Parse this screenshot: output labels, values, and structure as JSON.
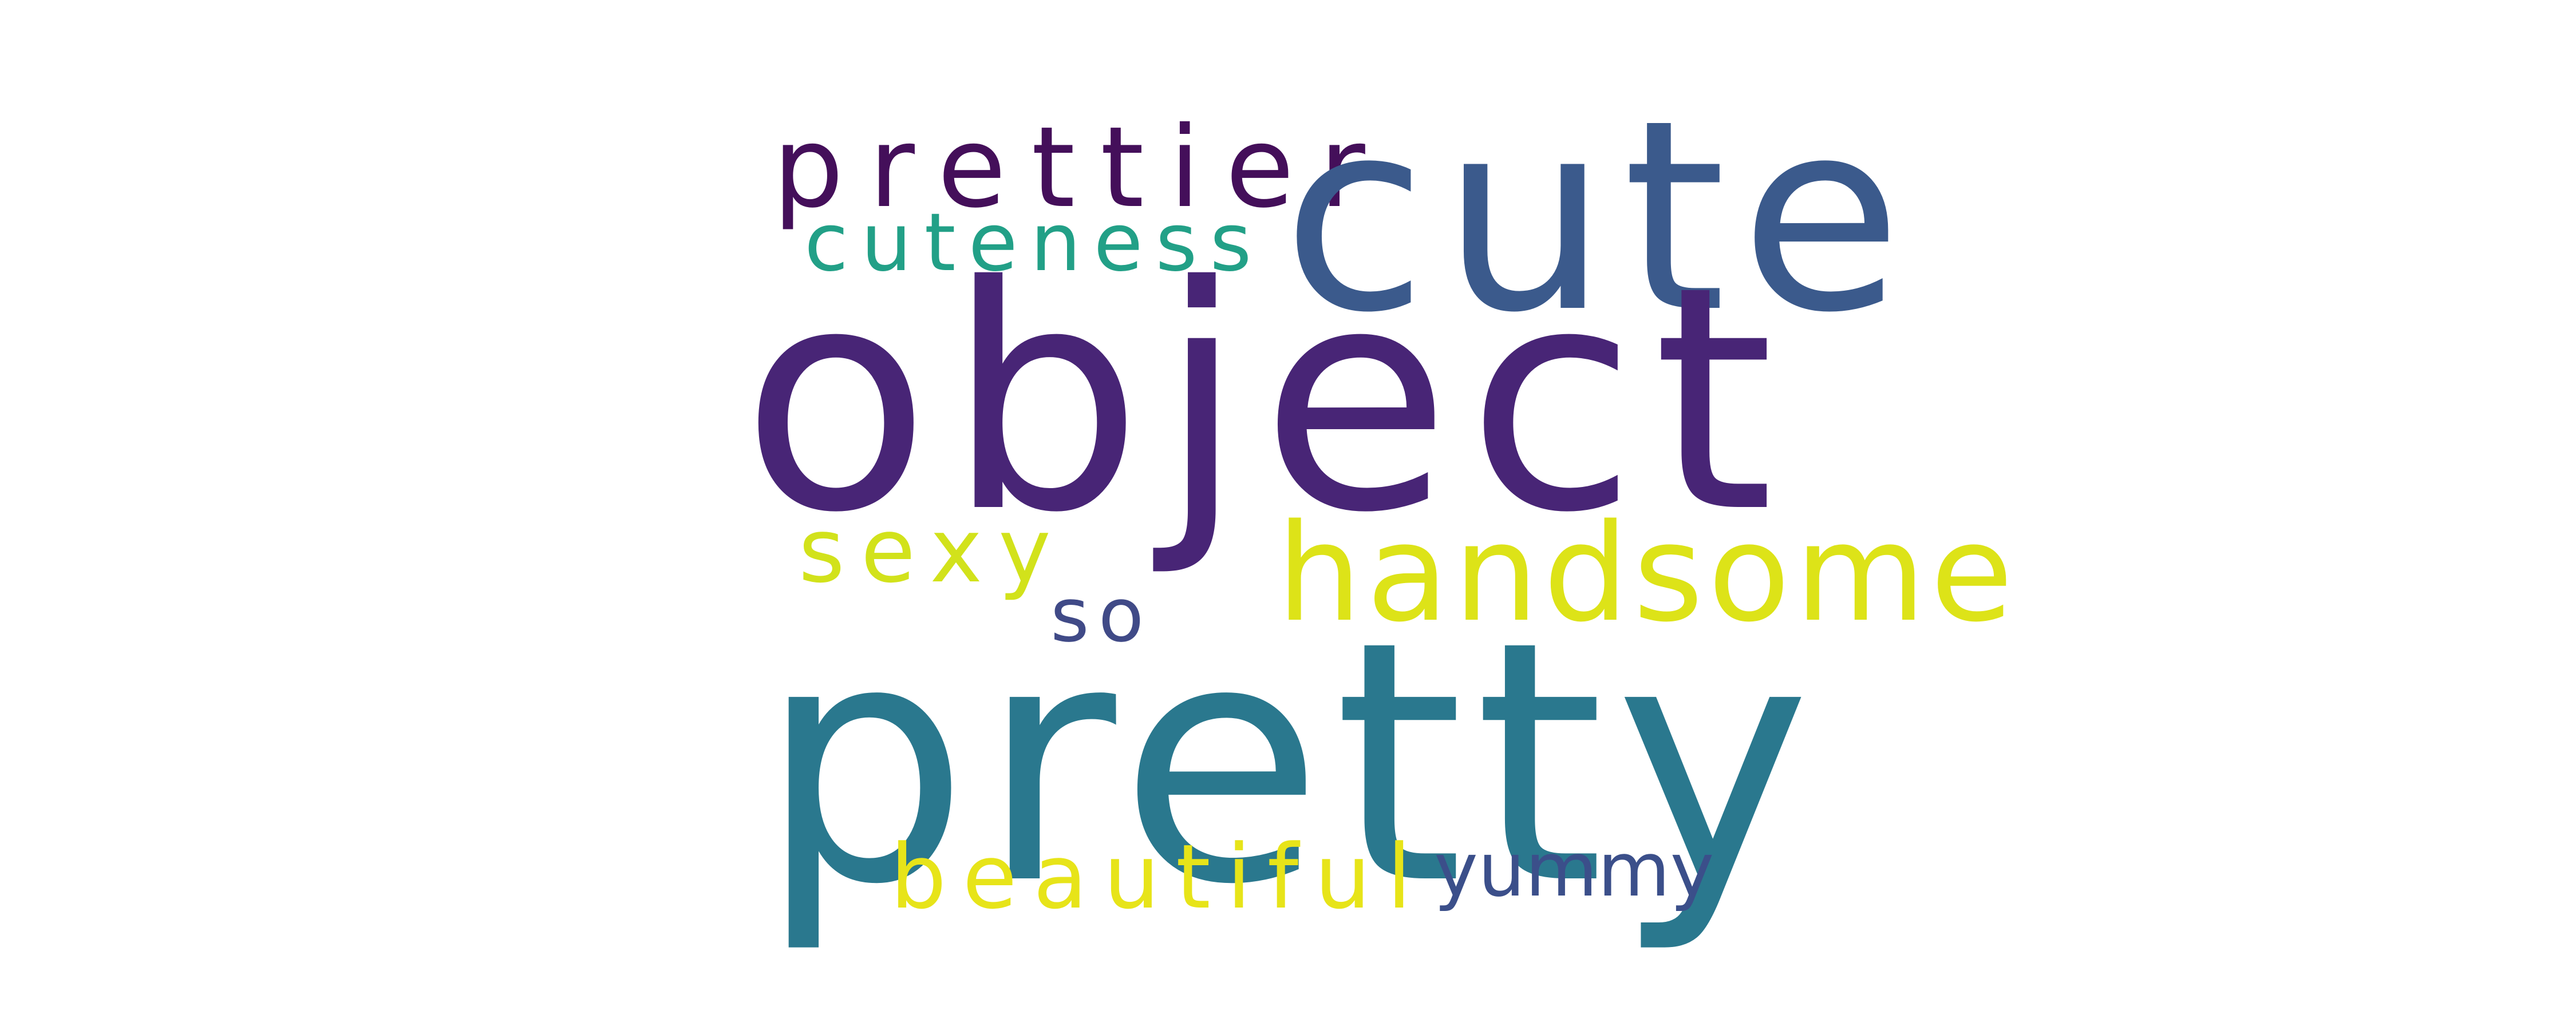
{
  "word_cloud": {
    "words": [
      {
        "text": "object",
        "color": "#482576"
      },
      {
        "text": "pretty",
        "color": "#2a788e"
      },
      {
        "text": "cute",
        "color": "#3b5a8c"
      },
      {
        "text": "handsome",
        "color": "#dde318"
      },
      {
        "text": "prettier",
        "color": "#440f5a"
      },
      {
        "text": "cuteness",
        "color": "#22a087"
      },
      {
        "text": "sexy",
        "color": "#d2e21b"
      },
      {
        "text": "beautiful",
        "color": "#e7e419"
      },
      {
        "text": "yummy",
        "color": "#3b4f8a"
      },
      {
        "text": "so",
        "color": "#404a87"
      }
    ]
  }
}
